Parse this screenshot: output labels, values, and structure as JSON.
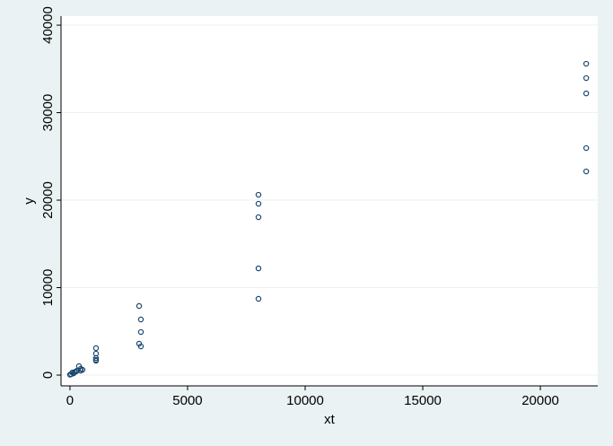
{
  "chart_data": {
    "type": "scatter",
    "x_label": "xt",
    "y_label": "y",
    "xlim": [
      -380,
      22440
    ],
    "ylim": [
      -1230,
      41030
    ],
    "xticks": [
      0,
      5000,
      10000,
      15000,
      20000
    ],
    "yticks": [
      0,
      10000,
      20000,
      30000,
      40000
    ],
    "grid": true,
    "color": "#1a476f",
    "x": [
      21950,
      21950,
      21950,
      21950,
      21950,
      8015,
      8015,
      8015,
      8015,
      8015,
      2940,
      3015,
      3015,
      2940,
      3015,
      1107,
      1107,
      1107,
      1107,
      1107,
      382,
      458,
      534,
      458,
      100,
      150,
      200,
      50,
      250,
      0,
      300
    ],
    "values": [
      35590,
      33950,
      32200,
      25950,
      23280,
      20615,
      19590,
      18050,
      12200,
      8720,
      7900,
      6360,
      4920,
      3590,
      3280,
      3080,
      2460,
      1950,
      1640,
      1740,
      1030,
      720,
      615,
      510,
      300,
      200,
      350,
      100,
      400,
      50,
      500
    ]
  }
}
